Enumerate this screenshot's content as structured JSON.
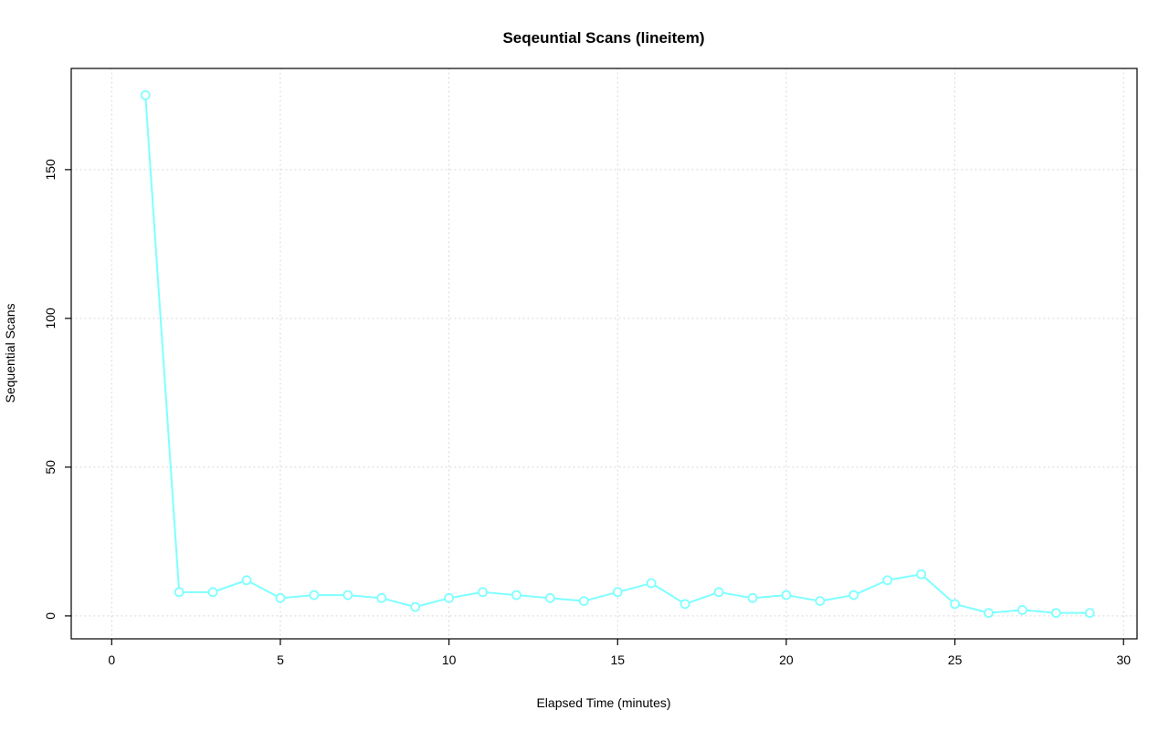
{
  "chart_data": {
    "type": "line",
    "title": "Seqeuntial Scans (lineitem)",
    "xlabel": "Elapsed Time (minutes)",
    "ylabel": "Sequential Scans",
    "x": [
      1,
      2,
      3,
      4,
      5,
      6,
      7,
      8,
      9,
      10,
      11,
      12,
      13,
      14,
      15,
      16,
      17,
      18,
      19,
      20,
      21,
      22,
      23,
      24,
      25,
      26,
      27,
      28,
      29
    ],
    "values": [
      175,
      8,
      8,
      12,
      6,
      7,
      7,
      6,
      3,
      6,
      8,
      7,
      6,
      5,
      8,
      11,
      4,
      8,
      6,
      7,
      5,
      7,
      12,
      14,
      4,
      1,
      2,
      1,
      1
    ],
    "xlim": [
      -1.2,
      30.4
    ],
    "ylim": [
      -7.7,
      184
    ],
    "xticks": [
      0,
      5,
      10,
      15,
      20,
      25,
      30
    ],
    "yticks": [
      0,
      50,
      100,
      150
    ],
    "grid": true,
    "legend": "none",
    "series_color": "#7FFFFF",
    "grid_color": "#D3D3D3",
    "axis_color": "#000000",
    "point_style": "open-circle"
  }
}
